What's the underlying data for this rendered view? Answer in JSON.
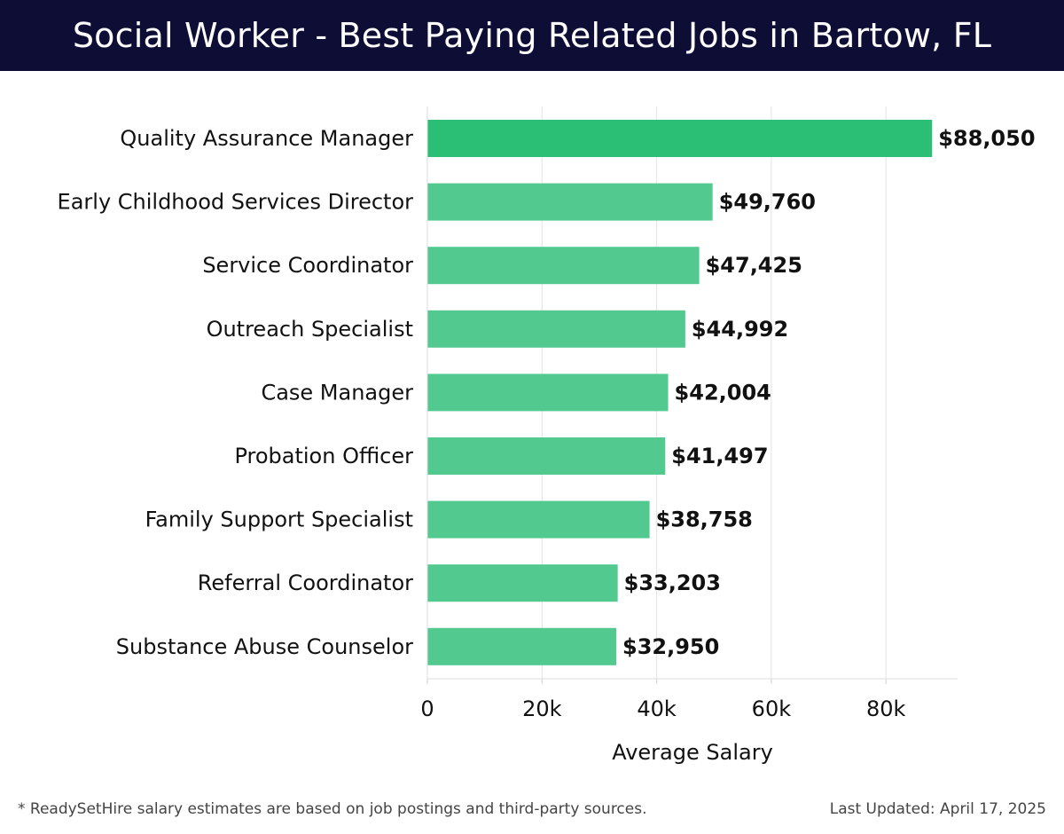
{
  "header": {
    "title": "Social Worker - Best Paying Related Jobs in Bartow, FL"
  },
  "chart_data": {
    "type": "bar",
    "orientation": "horizontal",
    "categories": [
      "Quality Assurance Manager",
      "Early Childhood Services Director",
      "Service Coordinator",
      "Outreach Specialist",
      "Case Manager",
      "Probation Officer",
      "Family Support Specialist",
      "Referral Coordinator",
      "Substance Abuse Counselor"
    ],
    "values": [
      88050,
      49760,
      47425,
      44992,
      42004,
      41497,
      38758,
      33203,
      32950
    ],
    "value_labels": [
      "$88,050",
      "$49,760",
      "$47,425",
      "$44,992",
      "$42,004",
      "$41,497",
      "$38,758",
      "$33,203",
      "$32,950"
    ],
    "xlabel": "Average Salary",
    "ylabel": "",
    "xlim": [
      0,
      92500
    ],
    "xticks": [
      0,
      20000,
      40000,
      60000,
      80000
    ],
    "xtick_labels": [
      "0",
      "20k",
      "40k",
      "60k",
      "80k"
    ],
    "grid": true,
    "colors": {
      "top_bar": "#2bbf76",
      "bar": "#52c98f",
      "grid": "#e3e3e3"
    }
  },
  "footer": {
    "note": "* ReadySetHire salary estimates are based on job postings and third-party sources.",
    "updated": "Last Updated: April 17, 2025"
  }
}
